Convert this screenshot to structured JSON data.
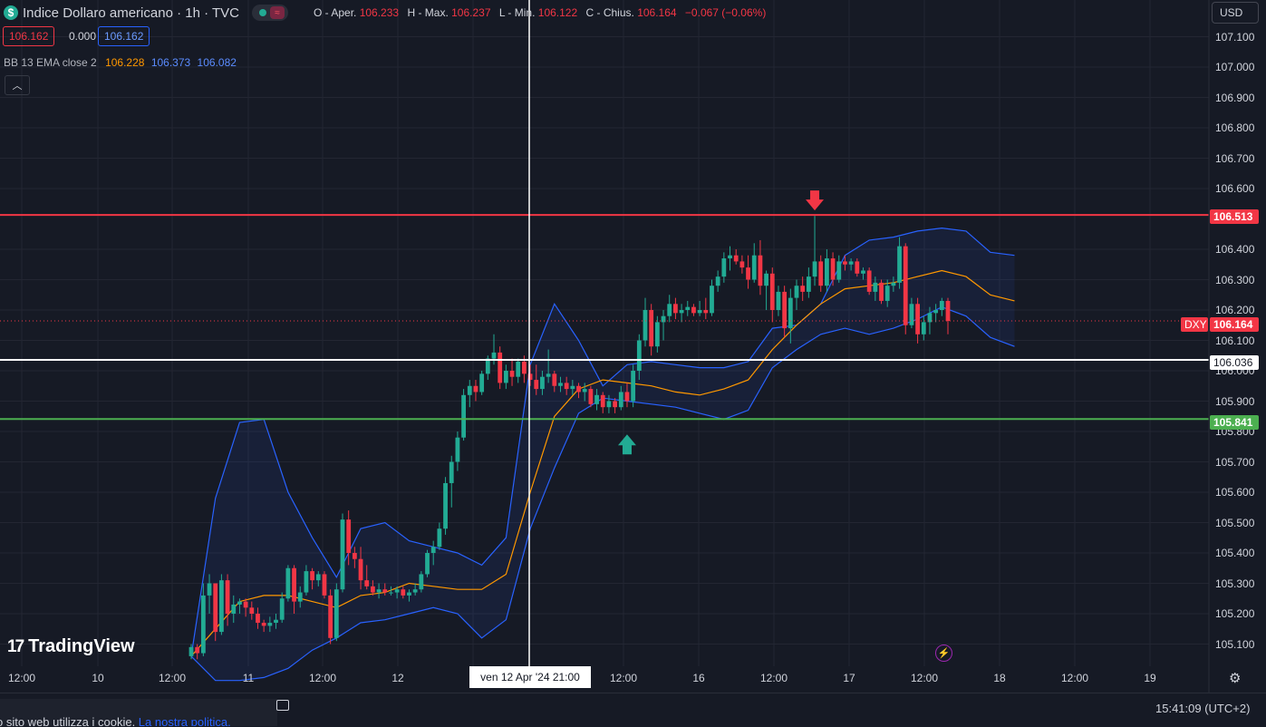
{
  "header": {
    "symbol_title": "Indice Dollaro americano · 1h · TVC",
    "ohlc": {
      "open_label": "O - Aper.",
      "open": "106.233",
      "high_label": "H - Max.",
      "high": "106.237",
      "low_label": "L - Min.",
      "low": "106.122",
      "close_label": "C - Chius.",
      "close": "106.164",
      "change": "−0.067 (−0.06%)"
    }
  },
  "trade": {
    "sell": "106.162",
    "spread": "0.000",
    "buy": "106.162"
  },
  "indicator": {
    "name": "BB 13 EMA close 2",
    "basis": "106.228",
    "upper": "106.373",
    "lower": "106.082"
  },
  "currency": "USD",
  "price_axis": [
    "107.100",
    "107.000",
    "106.900",
    "106.800",
    "106.700",
    "106.600",
    "106.400",
    "106.300",
    "106.200",
    "106.100",
    "106.000",
    "105.900",
    "105.800",
    "105.700",
    "105.600",
    "105.500",
    "105.400",
    "105.300",
    "105.200",
    "105.100"
  ],
  "tags": {
    "resistance": "106.513",
    "last_symbol": "DXY",
    "last_price": "106.164",
    "crosshair_price": "106.036",
    "support": "105.841"
  },
  "time_axis": [
    "12:00",
    "10",
    "12:00",
    "11",
    "12:00",
    "12",
    "12:00",
    "16",
    "12:00",
    "17",
    "12:00",
    "18",
    "12:00",
    "19"
  ],
  "crosshair_time": "ven 12 Apr '24   21:00",
  "brand": "TradingView",
  "footer": {
    "cookie_text": "o sito web utilizza i cookie. ",
    "cookie_link": "La nostra politica.",
    "clock": "15:41:09 (UTC+2)"
  },
  "colors": {
    "up": "#22ab94",
    "down": "#f23645",
    "band": "#2962ff",
    "basis": "#ff9800",
    "resistance": "#f23645",
    "support": "#4caf50",
    "crosshair": "#ffffff"
  },
  "icons": [
    "dollar-icon",
    "collapse-icon",
    "tradingview-logo-icon",
    "bolt-icon",
    "settings-gear-icon",
    "chat-icon",
    "down-arrow-icon",
    "up-arrow-icon"
  ],
  "chart_data": {
    "type": "candlestick",
    "title": "Indice Dollaro americano · 1h · TVC",
    "interval": "1h",
    "ylim": [
      105.05,
      107.15
    ],
    "grid": true,
    "horizontal_lines": [
      {
        "value": 106.513,
        "color": "#f23645"
      },
      {
        "value": 106.036,
        "color": "#ffffff"
      },
      {
        "value": 105.841,
        "color": "#4caf50"
      }
    ],
    "markers": [
      {
        "type": "arrow-down",
        "candle": 103,
        "color": "#f23645"
      },
      {
        "type": "arrow-up",
        "candle": 72,
        "color": "#22ab94"
      }
    ],
    "candles": [
      [
        105.06,
        105.1,
        105.05,
        105.09
      ],
      [
        105.09,
        105.1,
        105.05,
        105.07
      ],
      [
        105.07,
        105.3,
        105.06,
        105.26
      ],
      [
        105.26,
        105.33,
        105.2,
        105.3
      ],
      [
        105.3,
        105.3,
        105.11,
        105.14
      ],
      [
        105.14,
        105.33,
        105.13,
        105.31
      ],
      [
        105.31,
        105.33,
        105.16,
        105.2
      ],
      [
        105.2,
        105.26,
        105.17,
        105.23
      ],
      [
        105.23,
        105.25,
        105.2,
        105.24
      ],
      [
        105.24,
        105.25,
        105.19,
        105.22
      ],
      [
        105.22,
        105.24,
        105.18,
        105.2
      ],
      [
        105.2,
        105.22,
        105.15,
        105.17
      ],
      [
        105.17,
        105.18,
        105.14,
        105.16
      ],
      [
        105.16,
        105.19,
        105.14,
        105.17
      ],
      [
        105.17,
        105.2,
        105.15,
        105.18
      ],
      [
        105.18,
        105.27,
        105.17,
        105.25
      ],
      [
        105.25,
        105.36,
        105.24,
        105.35
      ],
      [
        105.35,
        105.36,
        105.2,
        105.24
      ],
      [
        105.24,
        105.29,
        105.22,
        105.27
      ],
      [
        105.27,
        105.36,
        105.26,
        105.34
      ],
      [
        105.34,
        105.35,
        105.28,
        105.31
      ],
      [
        105.31,
        105.34,
        105.29,
        105.33
      ],
      [
        105.33,
        105.34,
        105.25,
        105.26
      ],
      [
        105.26,
        105.28,
        105.1,
        105.12
      ],
      [
        105.12,
        105.3,
        105.11,
        105.28
      ],
      [
        105.28,
        105.53,
        105.27,
        105.51
      ],
      [
        105.51,
        105.54,
        105.36,
        105.4
      ],
      [
        105.4,
        105.42,
        105.35,
        105.38
      ],
      [
        105.38,
        105.42,
        105.28,
        105.31
      ],
      [
        105.31,
        105.36,
        105.28,
        105.29
      ],
      [
        105.29,
        105.31,
        105.26,
        105.27
      ],
      [
        105.27,
        105.3,
        105.25,
        105.28
      ],
      [
        105.28,
        105.3,
        105.26,
        105.27
      ],
      [
        105.27,
        105.29,
        105.26,
        105.27
      ],
      [
        105.27,
        105.29,
        105.25,
        105.28
      ],
      [
        105.28,
        105.29,
        105.25,
        105.26
      ],
      [
        105.26,
        105.28,
        105.24,
        105.27
      ],
      [
        105.27,
        105.3,
        105.26,
        105.28
      ],
      [
        105.28,
        105.34,
        105.27,
        105.33
      ],
      [
        105.33,
        105.41,
        105.32,
        105.4
      ],
      [
        105.4,
        105.44,
        105.36,
        105.42
      ],
      [
        105.42,
        105.5,
        105.41,
        105.48
      ],
      [
        105.48,
        105.65,
        105.46,
        105.63
      ],
      [
        105.63,
        105.72,
        105.55,
        105.7
      ],
      [
        105.7,
        105.8,
        105.67,
        105.78
      ],
      [
        105.78,
        105.94,
        105.77,
        105.92
      ],
      [
        105.92,
        105.97,
        105.88,
        105.95
      ],
      [
        105.95,
        105.97,
        105.9,
        105.93
      ],
      [
        105.93,
        106.0,
        105.92,
        105.99
      ],
      [
        105.99,
        106.05,
        105.97,
        106.04
      ],
      [
        106.04,
        106.12,
        106.02,
        106.06
      ],
      [
        106.06,
        106.08,
        105.94,
        105.96
      ],
      [
        105.96,
        106.02,
        105.94,
        106.0
      ],
      [
        106.0,
        106.04,
        105.95,
        105.98
      ],
      [
        105.98,
        106.04,
        105.96,
        106.03
      ],
      [
        106.03,
        106.05,
        105.96,
        105.99
      ],
      [
        105.99,
        106.02,
        105.95,
        105.97
      ],
      [
        105.97,
        106.02,
        105.92,
        105.94
      ],
      [
        105.94,
        106.0,
        105.92,
        105.98
      ],
      [
        105.98,
        106.07,
        105.96,
        105.99
      ],
      [
        105.99,
        106.0,
        105.93,
        105.95
      ],
      [
        105.95,
        105.98,
        105.93,
        105.96
      ],
      [
        105.96,
        105.98,
        105.92,
        105.94
      ],
      [
        105.94,
        105.97,
        105.92,
        105.95
      ],
      [
        105.95,
        105.96,
        105.91,
        105.93
      ],
      [
        105.93,
        105.96,
        105.9,
        105.94
      ],
      [
        105.94,
        105.95,
        105.88,
        105.89
      ],
      [
        105.89,
        105.94,
        105.87,
        105.92
      ],
      [
        105.92,
        105.93,
        105.86,
        105.88
      ],
      [
        105.88,
        105.92,
        105.86,
        105.9
      ],
      [
        105.9,
        105.91,
        105.86,
        105.88
      ],
      [
        105.88,
        105.95,
        105.87,
        105.93
      ],
      [
        105.93,
        105.96,
        105.88,
        105.9
      ],
      [
        105.9,
        106.02,
        105.88,
        106.0
      ],
      [
        106.0,
        106.12,
        105.97,
        106.1
      ],
      [
        106.1,
        106.24,
        106.08,
        106.2
      ],
      [
        106.2,
        106.22,
        106.05,
        106.08
      ],
      [
        106.08,
        106.18,
        106.06,
        106.16
      ],
      [
        106.16,
        106.2,
        106.1,
        106.18
      ],
      [
        106.18,
        106.25,
        106.16,
        106.22
      ],
      [
        106.22,
        106.24,
        106.17,
        106.19
      ],
      [
        106.19,
        106.22,
        106.16,
        106.2
      ],
      [
        106.2,
        106.23,
        106.18,
        106.21
      ],
      [
        106.21,
        106.22,
        106.18,
        106.19
      ],
      [
        106.19,
        106.23,
        106.18,
        106.2
      ],
      [
        106.2,
        106.24,
        106.17,
        106.19
      ],
      [
        106.19,
        106.3,
        106.18,
        106.28
      ],
      [
        106.28,
        106.33,
        106.26,
        106.31
      ],
      [
        106.31,
        106.39,
        106.29,
        106.37
      ],
      [
        106.37,
        106.41,
        106.33,
        106.38
      ],
      [
        106.38,
        106.4,
        106.35,
        106.36
      ],
      [
        106.36,
        106.38,
        106.32,
        106.34
      ],
      [
        106.34,
        106.38,
        106.27,
        106.3
      ],
      [
        106.3,
        106.42,
        106.29,
        106.38
      ],
      [
        106.38,
        106.43,
        106.25,
        106.28
      ],
      [
        106.28,
        106.33,
        106.2,
        106.32
      ],
      [
        106.32,
        106.34,
        106.16,
        106.2
      ],
      [
        106.2,
        106.28,
        106.18,
        106.26
      ],
      [
        106.26,
        106.28,
        106.11,
        106.14
      ],
      [
        106.14,
        106.27,
        106.09,
        106.24
      ],
      [
        106.24,
        106.3,
        106.2,
        106.28
      ],
      [
        106.28,
        106.31,
        106.23,
        106.26
      ],
      [
        106.26,
        106.34,
        106.24,
        106.31
      ],
      [
        106.31,
        106.51,
        106.28,
        106.36
      ],
      [
        106.36,
        106.38,
        106.26,
        106.28
      ],
      [
        106.28,
        106.4,
        106.26,
        106.37
      ],
      [
        106.37,
        106.39,
        106.28,
        106.3
      ],
      [
        106.3,
        106.38,
        106.29,
        106.36
      ],
      [
        106.36,
        106.38,
        106.33,
        106.35
      ],
      [
        106.35,
        106.37,
        106.33,
        106.36
      ],
      [
        106.36,
        106.37,
        106.31,
        106.32
      ],
      [
        106.32,
        106.34,
        106.3,
        106.33
      ],
      [
        106.33,
        106.34,
        106.25,
        106.26
      ],
      [
        106.26,
        106.31,
        106.23,
        106.29
      ],
      [
        106.29,
        106.3,
        106.22,
        106.23
      ],
      [
        106.23,
        106.3,
        106.21,
        106.28
      ],
      [
        106.28,
        106.31,
        106.26,
        106.29
      ],
      [
        106.29,
        106.44,
        106.27,
        106.41
      ],
      [
        106.41,
        106.42,
        106.12,
        106.15
      ],
      [
        106.15,
        106.24,
        106.14,
        106.22
      ],
      [
        106.22,
        106.24,
        106.09,
        106.12
      ],
      [
        106.12,
        106.18,
        106.1,
        106.16
      ],
      [
        106.16,
        106.21,
        106.12,
        106.19
      ],
      [
        106.19,
        106.22,
        106.16,
        106.2
      ],
      [
        106.2,
        106.24,
        106.18,
        106.23
      ],
      [
        106.23,
        106.24,
        106.12,
        106.164
      ]
    ],
    "bands": {
      "upper": [
        105.06,
        105.58,
        105.83,
        105.84,
        105.6,
        105.45,
        105.32,
        105.48,
        105.5,
        105.44,
        105.42,
        105.4,
        105.36,
        105.45,
        106.02,
        106.22,
        106.1,
        105.95,
        106.02,
        106.03,
        106.02,
        106.01,
        106.01,
        106.03,
        106.14,
        106.15,
        106.22,
        106.38,
        106.43,
        106.44,
        106.46,
        106.47,
        106.46,
        106.39,
        106.38
      ],
      "basis": [
        105.06,
        105.15,
        105.24,
        105.26,
        105.26,
        105.24,
        105.22,
        105.26,
        105.27,
        105.3,
        105.29,
        105.28,
        105.28,
        105.33,
        105.6,
        105.85,
        105.94,
        105.97,
        105.96,
        105.95,
        105.93,
        105.92,
        105.94,
        105.97,
        106.07,
        106.15,
        106.22,
        106.27,
        106.28,
        106.29,
        106.31,
        106.33,
        106.31,
        106.25,
        106.23
      ],
      "lower": [
        105.06,
        104.98,
        104.98,
        104.99,
        105.02,
        105.08,
        105.12,
        105.17,
        105.18,
        105.2,
        105.22,
        105.2,
        105.12,
        105.18,
        105.48,
        105.68,
        105.86,
        105.91,
        105.9,
        105.89,
        105.88,
        105.86,
        105.84,
        105.87,
        106.01,
        106.07,
        106.12,
        106.14,
        106.12,
        106.14,
        106.17,
        106.21,
        106.18,
        106.11,
        106.08
      ],
      "start_candle": 0,
      "step_candles": 4
    }
  }
}
